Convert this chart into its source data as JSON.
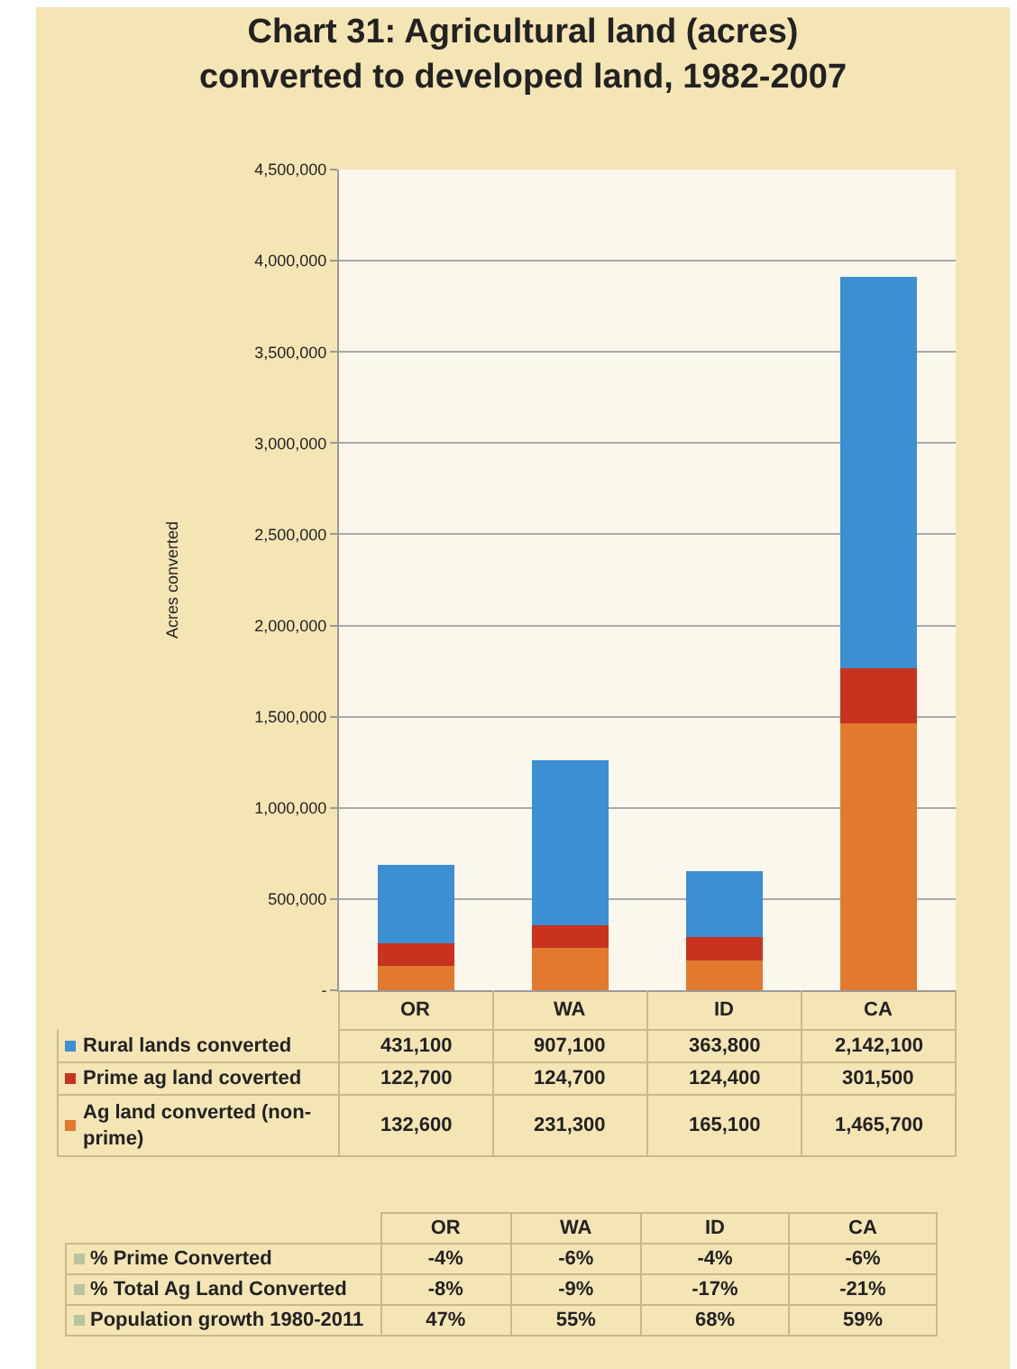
{
  "chart_data": [
    {
      "type": "bar",
      "title": "Chart 31: Agricultural land (acres)\nconverted to developed land, 1982-2007",
      "ylabel": "Acres converted",
      "categories": [
        "OR",
        "WA",
        "ID",
        "CA"
      ],
      "stacked": true,
      "series": [
        {
          "name": "Ag land converted (non-prime)",
          "color": "#e2792f",
          "values": [
            132600,
            231300,
            165100,
            1465700
          ],
          "value_labels": [
            "132,600",
            "231,300",
            "165,100",
            "1,465,700"
          ]
        },
        {
          "name": "Prime ag land coverted",
          "color": "#c9321f",
          "values": [
            122700,
            124700,
            124400,
            301500
          ],
          "value_labels": [
            "122,700",
            "124,700",
            "124,400",
            "301,500"
          ]
        },
        {
          "name": "Rural lands converted",
          "color": "#3b8fd2",
          "values": [
            431100,
            907100,
            363800,
            2142100
          ],
          "value_labels": [
            "431,100",
            "907,100",
            "363,800",
            "2,142,100"
          ]
        }
      ],
      "ylim": [
        0,
        4500000
      ],
      "yticks": [
        {
          "value": 0,
          "label": "-"
        },
        {
          "value": 500000,
          "label": "500,000"
        },
        {
          "value": 1000000,
          "label": "1,000,000"
        },
        {
          "value": 1500000,
          "label": "1,500,000"
        },
        {
          "value": 2000000,
          "label": "2,000,000"
        },
        {
          "value": 2500000,
          "label": "2,500,000"
        },
        {
          "value": 3000000,
          "label": "3,000,000"
        },
        {
          "value": 3500000,
          "label": "3,500,000"
        },
        {
          "value": 4000000,
          "label": "4,000,000"
        },
        {
          "value": 4500000,
          "label": "4,500,000"
        }
      ],
      "grid": "y",
      "legend": "bottom"
    },
    {
      "type": "other",
      "categories": [
        "OR",
        "WA",
        "ID",
        "CA"
      ],
      "series": [
        {
          "name": "% Prime Converted",
          "values": [
            -4,
            -6,
            -4,
            -6
          ],
          "value_labels": [
            "-4%",
            "-6%",
            "-4%",
            "-6%"
          ]
        },
        {
          "name": "% Total Ag Land Converted",
          "values": [
            -8,
            -9,
            -17,
            -21
          ],
          "value_labels": [
            "-8%",
            "-9%",
            "-17%",
            "-21%"
          ]
        },
        {
          "name": "Population growth 1980-2011",
          "values": [
            47,
            55,
            68,
            59
          ],
          "value_labels": [
            "47%",
            "55%",
            "68%",
            "59%"
          ]
        }
      ]
    }
  ]
}
